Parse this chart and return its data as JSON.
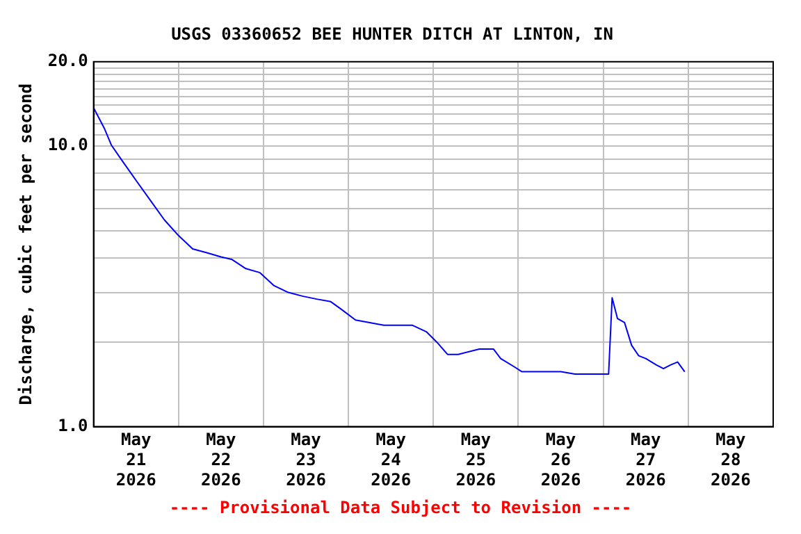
{
  "chart_data": {
    "type": "line",
    "title": "USGS 03360652 BEE HUNTER DITCH AT LINTON, IN",
    "ylabel": "Discharge, cubic feet per second",
    "annotations": [
      "---- Provisional Data Subject to Revision ----"
    ],
    "log": "y",
    "grid": true,
    "legend": false,
    "marker": "none",
    "line_style": "solid",
    "xlim": [
      "2026-05-21T00:00",
      "2026-05-29T00:00"
    ],
    "xticks": [
      {
        "value": "2026-05-21T00:00",
        "label": null
      },
      {
        "value": "2026-05-21T12:00",
        "label": "May\n21\n2026"
      },
      {
        "value": "2026-05-22T00:00",
        "label": null
      },
      {
        "value": "2026-05-22T12:00",
        "label": "May\n22\n2026"
      },
      {
        "value": "2026-05-23T00:00",
        "label": null
      },
      {
        "value": "2026-05-23T12:00",
        "label": "May\n23\n2026"
      },
      {
        "value": "2026-05-24T00:00",
        "label": null
      },
      {
        "value": "2026-05-24T12:00",
        "label": "May\n24\n2026"
      },
      {
        "value": "2026-05-25T00:00",
        "label": null
      },
      {
        "value": "2026-05-25T12:00",
        "label": "May\n25\n2026"
      },
      {
        "value": "2026-05-26T00:00",
        "label": null
      },
      {
        "value": "2026-05-26T12:00",
        "label": "May\n26\n2026"
      },
      {
        "value": "2026-05-27T00:00",
        "label": null
      },
      {
        "value": "2026-05-27T12:00",
        "label": "May\n27\n2026"
      },
      {
        "value": "2026-05-28T00:00",
        "label": null
      },
      {
        "value": "2026-05-28T12:00",
        "label": "May\n28\n2026"
      },
      {
        "value": "2026-05-29T00:00",
        "label": null
      }
    ],
    "ylim": [
      1,
      20
    ],
    "yticks": [
      {
        "value": 1,
        "label": "1.0"
      },
      {
        "value": 2,
        "label": null
      },
      {
        "value": 3,
        "label": null
      },
      {
        "value": 4,
        "label": null
      },
      {
        "value": 5,
        "label": null
      },
      {
        "value": 6,
        "label": null
      },
      {
        "value": 7,
        "label": null
      },
      {
        "value": 8,
        "label": null
      },
      {
        "value": 9,
        "label": null
      },
      {
        "value": 10,
        "label": "10.0"
      },
      {
        "value": 11,
        "label": null
      },
      {
        "value": 12,
        "label": null
      },
      {
        "value": 13,
        "label": null
      },
      {
        "value": 14,
        "label": null
      },
      {
        "value": 15,
        "label": null
      },
      {
        "value": 16,
        "label": null
      },
      {
        "value": 17,
        "label": null
      },
      {
        "value": 18,
        "label": null
      },
      {
        "value": 19,
        "label": null
      },
      {
        "value": 20,
        "label": "20.0"
      }
    ],
    "x": [
      "2026-05-21T00:00",
      "2026-05-21T03:00",
      "2026-05-21T05:00",
      "2026-05-21T08:00",
      "2026-05-21T12:00",
      "2026-05-21T16:00",
      "2026-05-21T20:00",
      "2026-05-22T00:00",
      "2026-05-22T04:00",
      "2026-05-22T08:00",
      "2026-05-22T12:00",
      "2026-05-22T15:00",
      "2026-05-22T19:00",
      "2026-05-22T23:00",
      "2026-05-23T03:00",
      "2026-05-23T07:00",
      "2026-05-23T11:00",
      "2026-05-23T15:00",
      "2026-05-23T19:00",
      "2026-05-23T22:00",
      "2026-05-24T02:00",
      "2026-05-24T06:00",
      "2026-05-24T10:00",
      "2026-05-24T18:00",
      "2026-05-24T22:00",
      "2026-05-25T01:00",
      "2026-05-25T04:00",
      "2026-05-25T07:00",
      "2026-05-25T13:00",
      "2026-05-25T17:00",
      "2026-05-25T19:00",
      "2026-05-25T23:00",
      "2026-05-26T01:00",
      "2026-05-26T12:00",
      "2026-05-26T16:00",
      "2026-05-27T01:30",
      "2026-05-27T02:30",
      "2026-05-27T04:00",
      "2026-05-27T06:00",
      "2026-05-27T08:00",
      "2026-05-27T10:00",
      "2026-05-27T12:00",
      "2026-05-27T15:00",
      "2026-05-27T17:00",
      "2026-05-27T19:00",
      "2026-05-27T21:00",
      "2026-05-27T23:00"
    ],
    "series": [
      {
        "color": "#0000ff",
        "values": [
          13.7,
          11.6,
          10.1,
          8.9,
          7.55,
          6.42,
          5.46,
          4.8,
          4.3,
          4.17,
          4.03,
          3.95,
          3.66,
          3.54,
          3.18,
          3.01,
          2.92,
          2.85,
          2.79,
          2.62,
          2.4,
          2.35,
          2.3,
          2.3,
          2.18,
          2.0,
          1.81,
          1.81,
          1.89,
          1.89,
          1.75,
          1.63,
          1.57,
          1.57,
          1.54,
          1.54,
          2.88,
          2.43,
          2.35,
          1.95,
          1.79,
          1.75,
          1.66,
          1.61,
          1.66,
          1.7,
          1.57
        ]
      }
    ]
  }
}
